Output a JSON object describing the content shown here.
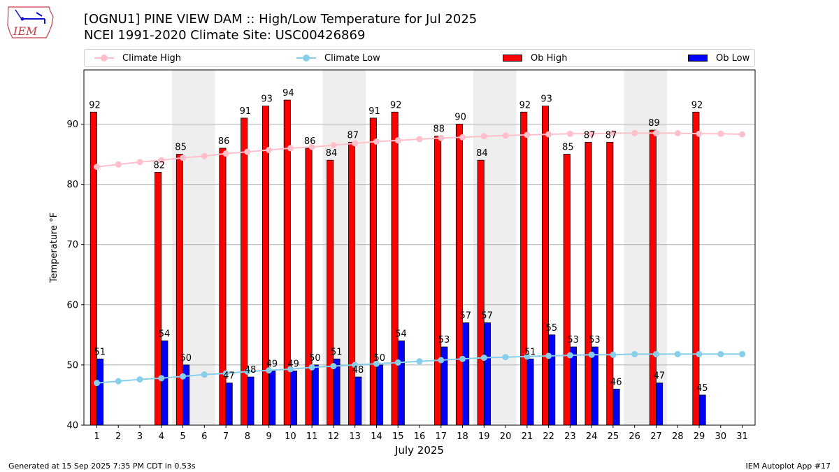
{
  "header": {
    "title_line1": "[OGNU1] PINE VIEW DAM :: High/Low Temperature for Jul 2025",
    "title_line2": "NCEI 1991-2020 Climate Site: USC00426869",
    "logo_text": "IEM"
  },
  "legend": [
    {
      "label": "Climate High",
      "kind": "line",
      "color": "#ffc0cb"
    },
    {
      "label": "Climate Low",
      "kind": "line",
      "color": "#87ceeb"
    },
    {
      "label": "Ob High",
      "kind": "bar",
      "color": "#ff0000"
    },
    {
      "label": "Ob Low",
      "kind": "bar",
      "color": "#0000ff"
    }
  ],
  "footer": {
    "left": "Generated at 15 Sep 2025 7:35 PM CDT in 0.53s",
    "right": "IEM Autoplot App #17"
  },
  "chart_data": {
    "type": "bar",
    "title": "[OGNU1] PINE VIEW DAM :: High/Low Temperature for Jul 2025",
    "xlabel": "July 2025",
    "ylabel": "Temperature °F",
    "ylim": [
      40,
      99
    ],
    "yticks": [
      40,
      50,
      60,
      70,
      80,
      90
    ],
    "grid": true,
    "legend_position": "top",
    "categories": [
      "1",
      "2",
      "3",
      "4",
      "5",
      "6",
      "7",
      "8",
      "9",
      "10",
      "11",
      "12",
      "13",
      "14",
      "15",
      "16",
      "17",
      "18",
      "19",
      "20",
      "21",
      "22",
      "23",
      "24",
      "25",
      "26",
      "27",
      "28",
      "29",
      "30",
      "31"
    ],
    "weekend_days": [
      5,
      6,
      12,
      13,
      19,
      20,
      26,
      27
    ],
    "series": [
      {
        "name": "Ob High",
        "type": "bar",
        "color": "#ff0000",
        "values": [
          92,
          null,
          null,
          82,
          85,
          null,
          86,
          91,
          93,
          94,
          86,
          84,
          87,
          91,
          92,
          null,
          88,
          90,
          84,
          null,
          92,
          93,
          85,
          87,
          87,
          null,
          89,
          null,
          92,
          null,
          null
        ]
      },
      {
        "name": "Ob Low",
        "type": "bar",
        "color": "#0000ff",
        "values": [
          51,
          null,
          null,
          54,
          50,
          null,
          47,
          48,
          49,
          49,
          50,
          51,
          48,
          50,
          54,
          null,
          53,
          57,
          57,
          null,
          51,
          55,
          53,
          53,
          46,
          null,
          47,
          null,
          45,
          null,
          null
        ]
      },
      {
        "name": "Climate High",
        "type": "line",
        "color": "#ffc0cb",
        "values": [
          82.9,
          83.3,
          83.7,
          84.0,
          84.4,
          84.7,
          85.1,
          85.4,
          85.7,
          86.0,
          86.2,
          86.5,
          86.8,
          87.1,
          87.3,
          87.5,
          87.7,
          87.8,
          88.0,
          88.1,
          88.2,
          88.3,
          88.4,
          88.4,
          88.5,
          88.5,
          88.5,
          88.5,
          88.4,
          88.4,
          88.3
        ]
      },
      {
        "name": "Climate Low",
        "type": "line",
        "color": "#87ceeb",
        "values": [
          47.0,
          47.3,
          47.6,
          47.8,
          48.1,
          48.4,
          48.6,
          48.9,
          49.1,
          49.3,
          49.6,
          49.8,
          50.0,
          50.2,
          50.4,
          50.6,
          50.8,
          51.0,
          51.2,
          51.3,
          51.4,
          51.5,
          51.6,
          51.7,
          51.7,
          51.8,
          51.8,
          51.8,
          51.8,
          51.8,
          51.8
        ]
      }
    ]
  }
}
